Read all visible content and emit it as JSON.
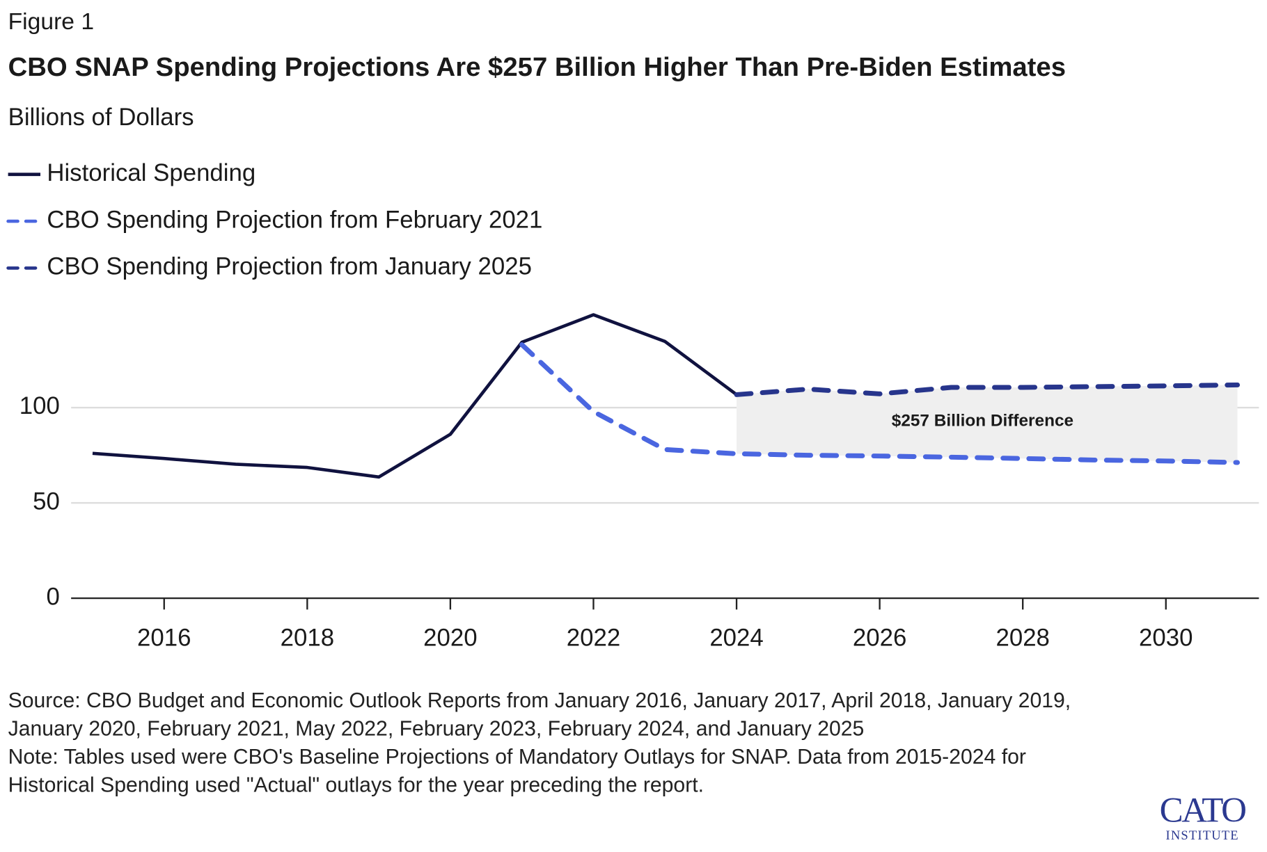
{
  "figure_label": "Figure 1",
  "chart_data": {
    "type": "line",
    "title": "CBO SNAP Spending Projections Are $257 Billion Higher Than Pre-Biden Estimates",
    "subtitle": "Billions of Dollars",
    "x": [
      2015,
      2016,
      2017,
      2018,
      2019,
      2020,
      2021,
      2022,
      2023,
      2024,
      2025,
      2026,
      2027,
      2028,
      2029,
      2030,
      2031
    ],
    "series": [
      {
        "name": "Historical Spending",
        "color": "#10123f",
        "dashed": false,
        "values": [
          76,
          73.3,
          70.3,
          68.6,
          63.6,
          86,
          134.3,
          148.7,
          134.7,
          106.8,
          null,
          null,
          null,
          null,
          null,
          null,
          null
        ]
      },
      {
        "name": "CBO Spending Projection from February 2021",
        "color": "#4a66e0",
        "dashed": true,
        "values": [
          null,
          null,
          null,
          null,
          null,
          null,
          133,
          97.9,
          78,
          75.8,
          75,
          74.6,
          74,
          73.3,
          72.5,
          72,
          71.2
        ]
      },
      {
        "name": "CBO Spending Projection from January 2025",
        "color": "#27358c",
        "dashed": true,
        "values": [
          null,
          null,
          null,
          null,
          null,
          null,
          null,
          null,
          null,
          106.8,
          109.7,
          107.2,
          110.6,
          110.6,
          111,
          111.4,
          111.9
        ]
      }
    ],
    "annotation": "$257 Billion Difference",
    "xlim": [
      2014.7,
      2031.3
    ],
    "xticks": [
      2016,
      2018,
      2020,
      2022,
      2024,
      2026,
      2028,
      2030
    ],
    "ylim": [
      0,
      155
    ],
    "yticks": [
      0,
      50,
      100
    ],
    "grid": true,
    "source": "Source: CBO Budget and Economic Outlook Reports from January 2016, January 2017, April 2018, January 2019, January 2020, February 2021, May 2022, February 2023, February 2024, and January 2025",
    "note": "Note: Tables used were CBO's Baseline Projections of Mandatory Outlays for SNAP. Data from 2015-2024 for Historical Spending used \"Actual\" outlays for the year preceding the report."
  },
  "logo": {
    "name": "CATO",
    "subname": "INSTITUTE"
  }
}
